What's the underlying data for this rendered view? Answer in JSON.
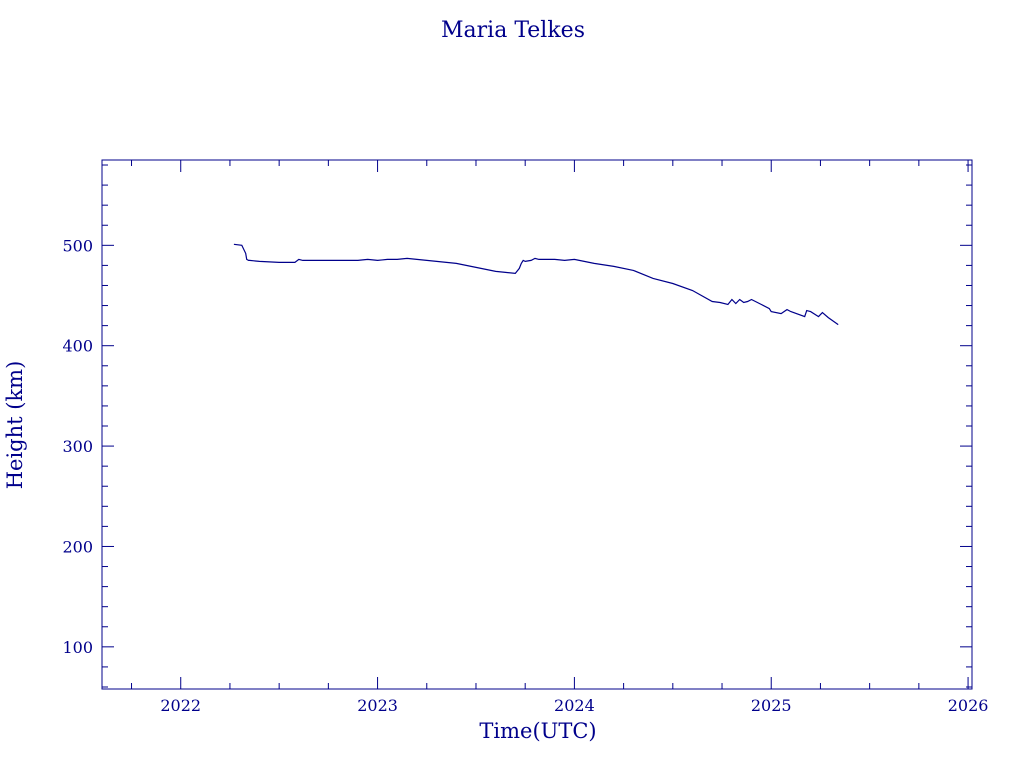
{
  "colors": {
    "axis": "#00008b",
    "line": "#00008b",
    "background": "#ffffff"
  },
  "chart_data": {
    "type": "line",
    "title": "Maria Telkes",
    "xlabel": "Time(UTC)",
    "ylabel": "Height (km)",
    "xlim": [
      2021.6,
      2026.02
    ],
    "ylim": [
      58,
      585
    ],
    "x_ticks": [
      2022,
      2023,
      2024,
      2025,
      2026
    ],
    "x_tick_labels": [
      "2022",
      "2023",
      "2024",
      "2025",
      "2026"
    ],
    "y_ticks": [
      100,
      200,
      300,
      400,
      500
    ],
    "y_tick_labels": [
      "100",
      "200",
      "300",
      "400",
      "500"
    ],
    "grid": false,
    "series": [
      {
        "name": "",
        "x": [
          2022.27,
          2022.31,
          2022.33,
          2022.335,
          2022.345,
          2022.35,
          2022.4,
          2022.5,
          2022.58,
          2022.6,
          2022.62,
          2022.65,
          2022.7,
          2022.75,
          2022.8,
          2022.85,
          2022.9,
          2022.95,
          2023.0,
          2023.05,
          2023.1,
          2023.15,
          2023.2,
          2023.25,
          2023.3,
          2023.4,
          2023.5,
          2023.6,
          2023.65,
          2023.7,
          2023.72,
          2023.73,
          2023.74,
          2023.75,
          2023.78,
          2023.8,
          2023.82,
          2023.85,
          2023.9,
          2023.95,
          2024.0,
          2024.05,
          2024.1,
          2024.2,
          2024.3,
          2024.4,
          2024.5,
          2024.6,
          2024.7,
          2024.74,
          2024.78,
          2024.8,
          2024.82,
          2024.84,
          2024.86,
          2024.88,
          2024.9,
          2024.95,
          2024.99,
          2025.0,
          2025.05,
          2025.08,
          2025.1,
          2025.17,
          2025.18,
          2025.2,
          2025.24,
          2025.26,
          2025.29,
          2025.34
        ],
        "y": [
          501,
          500,
          492,
          486,
          485,
          485,
          484,
          483,
          483,
          486,
          485,
          485,
          485,
          485,
          485,
          485,
          485,
          486,
          485,
          486,
          486,
          487,
          486,
          485,
          484,
          482,
          478,
          474,
          473,
          472,
          477,
          482,
          485,
          484,
          485,
          487,
          486,
          486,
          486,
          485,
          486,
          484,
          482,
          479,
          475,
          467,
          462,
          455,
          444,
          443,
          441,
          446,
          442,
          446,
          443,
          444,
          446,
          441,
          437,
          434,
          432,
          436,
          434,
          429,
          435,
          434,
          429,
          433,
          428,
          421
        ]
      }
    ]
  }
}
